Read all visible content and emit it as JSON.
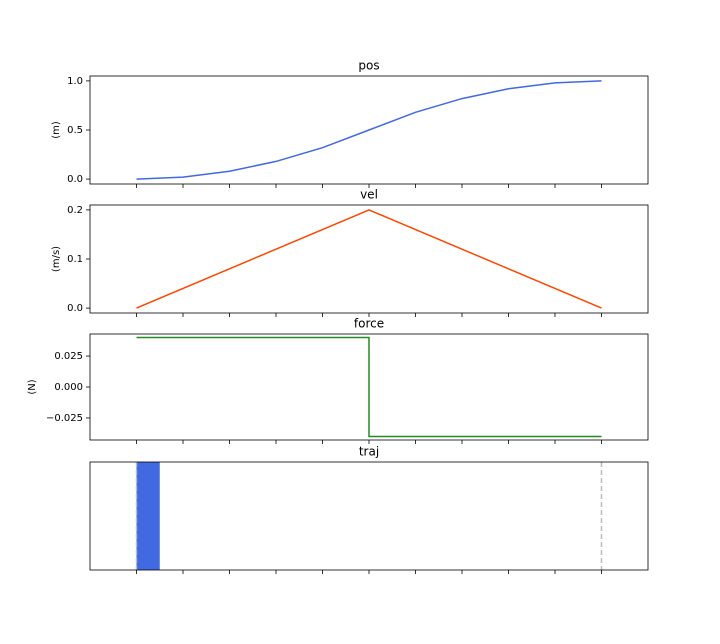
{
  "chart_data": [
    {
      "type": "line",
      "title": "pos",
      "ylabel": "(m)",
      "x": [
        0,
        1,
        2,
        3,
        4,
        5,
        6,
        7,
        8,
        9,
        10
      ],
      "values": [
        0,
        0.02,
        0.08,
        0.18,
        0.32,
        0.5,
        0.68,
        0.82,
        0.92,
        0.98,
        1.0
      ],
      "color": "#4169e1",
      "xlim": [
        -1,
        11
      ],
      "xticks": [
        0,
        1,
        2,
        3,
        4,
        5,
        6,
        7,
        8,
        9,
        10
      ],
      "ylim": [
        -0.05,
        1.05
      ],
      "yticks": [
        {
          "value": 0,
          "label": "0.0"
        },
        0.5,
        {
          "value": 1,
          "label": "1.0"
        }
      ]
    },
    {
      "type": "line",
      "title": "vel",
      "ylabel": "(m/s)",
      "x": [
        0,
        1,
        2,
        3,
        4,
        5,
        6,
        7,
        8,
        9,
        10
      ],
      "values": [
        0,
        0.04,
        0.08,
        0.12,
        0.16,
        0.2,
        0.16,
        0.12,
        0.08,
        0.04,
        0
      ],
      "color": "#ff4500",
      "xlim": [
        -1,
        11
      ],
      "xticks": [
        0,
        1,
        2,
        3,
        4,
        5,
        6,
        7,
        8,
        9,
        10
      ],
      "ylim": [
        -0.01,
        0.21
      ],
      "yticks": [
        {
          "value": 0,
          "label": "0.0"
        },
        0.1,
        0.2
      ]
    },
    {
      "type": "line",
      "title": "force",
      "ylabel": "(N)",
      "x": [
        0,
        5,
        5,
        10
      ],
      "values": [
        0.04,
        0.04,
        -0.04,
        -0.04
      ],
      "color": "#228b22",
      "xlim": [
        -1,
        11
      ],
      "xticks": [
        0,
        1,
        2,
        3,
        4,
        5,
        6,
        7,
        8,
        9,
        10
      ],
      "ylim": [
        -0.0428,
        0.0428
      ],
      "yticks": [
        {
          "value": -0.025,
          "label": "−0.025"
        },
        {
          "value": 0,
          "label": "0.000"
        },
        0.025
      ]
    },
    {
      "type": "span",
      "title": "traj",
      "spans": [
        {
          "start": 0,
          "end": 0.5
        }
      ],
      "color": "#4169e1",
      "vlines": [
        0,
        10
      ],
      "vline_color": "#bbbbbb",
      "xlim": [
        -1,
        11
      ],
      "xticks": [
        0,
        1,
        2,
        3,
        4,
        5,
        6,
        7,
        8,
        9,
        10
      ]
    }
  ]
}
